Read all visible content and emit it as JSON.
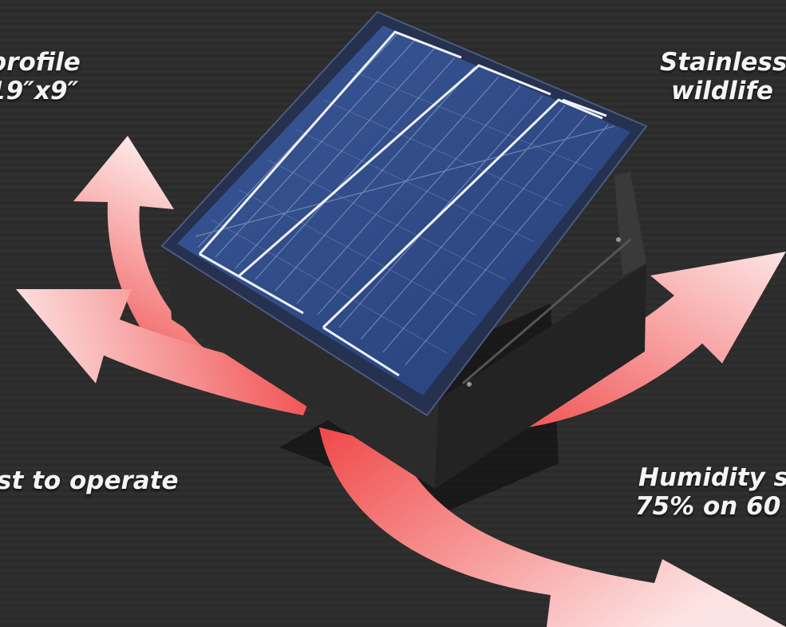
{
  "captions": {
    "top_left": {
      "line1": "profile",
      "line2": "19″x9″"
    },
    "top_right": {
      "line1": "Stainless",
      "line2": "wildlife"
    },
    "bottom_left": {
      "line1": "st to operate"
    },
    "bottom_right": {
      "line1": "Humidity s",
      "line2": "75% on 60"
    }
  },
  "colors": {
    "arrow": "#f25a5a",
    "arrow_light": "#fde1e1",
    "panel_cell": "#2f4a86",
    "housing": "#2a2a2a",
    "roof": "#333333"
  }
}
